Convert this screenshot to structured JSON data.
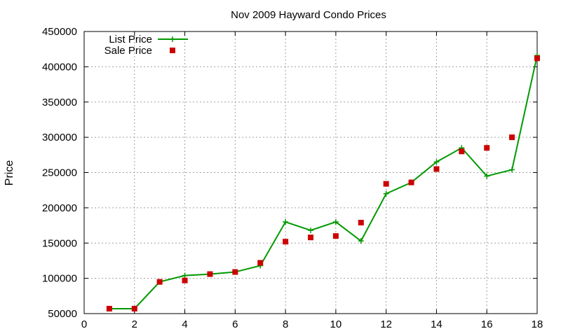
{
  "chart_data": {
    "type": "line",
    "title": "Nov 2009 Hayward Condo Prices",
    "xlabel": "",
    "ylabel": "Price",
    "xlim": [
      0,
      18
    ],
    "ylim": [
      50000,
      450000
    ],
    "x_ticks": [
      0,
      2,
      4,
      6,
      8,
      10,
      12,
      14,
      16,
      18
    ],
    "y_ticks": [
      50000,
      100000,
      150000,
      200000,
      250000,
      300000,
      350000,
      400000,
      450000
    ],
    "grid": true,
    "legend_position": "top-left",
    "series": [
      {
        "name": "List Price",
        "style": "line-points",
        "color": "#009900",
        "x": [
          1,
          2,
          3,
          4,
          5,
          6,
          7,
          8,
          9,
          10,
          11,
          12,
          13,
          14,
          15,
          16,
          17,
          18
        ],
        "values": [
          57000,
          57000,
          95000,
          104000,
          106000,
          109000,
          118000,
          180000,
          168000,
          180000,
          153000,
          220000,
          236000,
          265000,
          285000,
          245000,
          254000,
          416000
        ]
      },
      {
        "name": "Sale Price",
        "style": "points",
        "color": "#cc0000",
        "x": [
          1,
          2,
          3,
          4,
          5,
          6,
          7,
          8,
          9,
          10,
          11,
          12,
          13,
          14,
          15,
          16,
          17,
          18
        ],
        "values": [
          57000,
          57000,
          95000,
          97000,
          106000,
          109000,
          122000,
          152000,
          158000,
          160000,
          179000,
          234000,
          236000,
          255000,
          280000,
          285000,
          300000,
          412000
        ]
      }
    ]
  }
}
